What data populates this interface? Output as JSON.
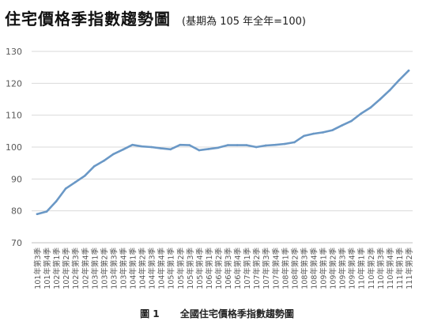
{
  "title": "住宅價格季指數趨勢圖",
  "subtitle": "(基期為 105 年全年=100)",
  "caption": {
    "number": "圖 1",
    "text": "全國住宅價格季指數趨勢圖"
  },
  "colors": {
    "line": "#6a98c6",
    "grid": "#d9d9d9",
    "axis": "#bfbfbf",
    "tick_text": "#595959"
  },
  "chart_data": {
    "type": "line",
    "title": "住宅價格季指數趨勢圖",
    "ylim": [
      70,
      130
    ],
    "yticks": [
      70,
      80,
      90,
      100,
      110,
      120,
      130
    ],
    "grid": true,
    "categories": [
      "101年第3季",
      "101年第4季",
      "102年第1季",
      "102年第2季",
      "102年第3季",
      "102年第4季",
      "103年第1季",
      "103年第2季",
      "103年第3季",
      "103年第4季",
      "104年第1季",
      "104年第2季",
      "104年第3季",
      "104年第4季",
      "105年第1季",
      "105年第2季",
      "105年第3季",
      "105年第4季",
      "106年第1季",
      "106年第2季",
      "106年第3季",
      "106年第4季",
      "107年第1季",
      "107年第2季",
      "107年第3季",
      "107年第4季",
      "108年第1季",
      "108年第2季",
      "108年第3季",
      "108年第4季",
      "109年第1季",
      "109年第2季",
      "109年第3季",
      "109年第4季",
      "110年第1季",
      "110年第2季",
      "110年第3季",
      "110年第4季",
      "111年第1季",
      "111年第2季"
    ],
    "series": [
      {
        "name": "",
        "values": [
          79.0,
          79.8,
          83.0,
          87.0,
          89.0,
          91.0,
          94.0,
          95.7,
          97.8,
          99.2,
          100.7,
          100.2,
          100.0,
          99.6,
          99.3,
          100.7,
          100.6,
          99.0,
          99.4,
          99.8,
          100.6,
          100.6,
          100.6,
          100.0,
          100.5,
          100.7,
          101.0,
          101.5,
          103.5,
          104.2,
          104.6,
          105.3,
          106.8,
          108.2,
          110.5,
          112.4,
          115.0,
          117.8,
          121.0,
          124.0
        ]
      }
    ]
  }
}
